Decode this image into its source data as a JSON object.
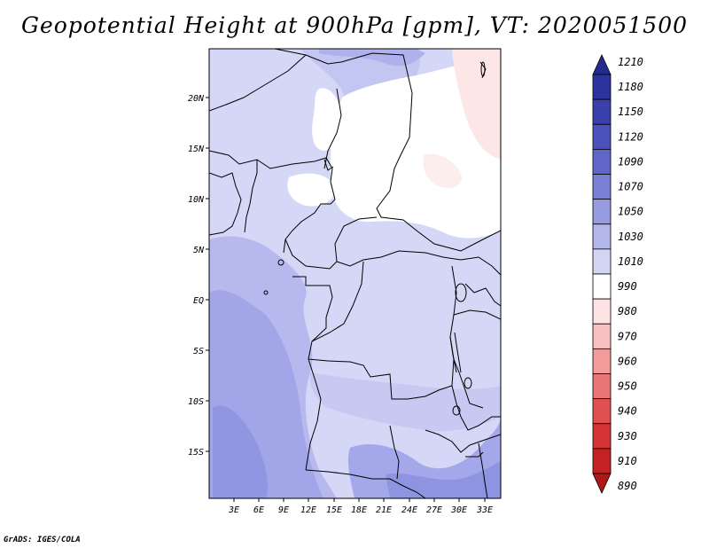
{
  "title": "Geopotential Height at 900hPa [gpm], VT: 2020051500",
  "credit": "GrADS: IGES/COLA",
  "map": {
    "lat_ticks": [
      "20N",
      "15N",
      "10N",
      "5N",
      "EQ",
      "5S",
      "10S",
      "15S"
    ],
    "lon_ticks": [
      "3E",
      "6E",
      "9E",
      "12E",
      "15E",
      "18E",
      "21E",
      "24E",
      "27E",
      "30E",
      "33E"
    ]
  },
  "colorbar": {
    "labels": [
      "1210",
      "1180",
      "1150",
      "1120",
      "1090",
      "1070",
      "1050",
      "1030",
      "1010",
      "990",
      "980",
      "970",
      "960",
      "950",
      "940",
      "930",
      "910",
      "890"
    ],
    "colors": [
      "#232b8f",
      "#2d339e",
      "#3a41ad",
      "#4b52bb",
      "#6067c9",
      "#7a80d6",
      "#979be2",
      "#b4b7ec",
      "#d3d5f5",
      "#ffffff",
      "#fde3e3",
      "#f8c0c0",
      "#f29b9b",
      "#ea7676",
      "#e05050",
      "#d43434",
      "#c22222",
      "#b01818"
    ]
  }
}
